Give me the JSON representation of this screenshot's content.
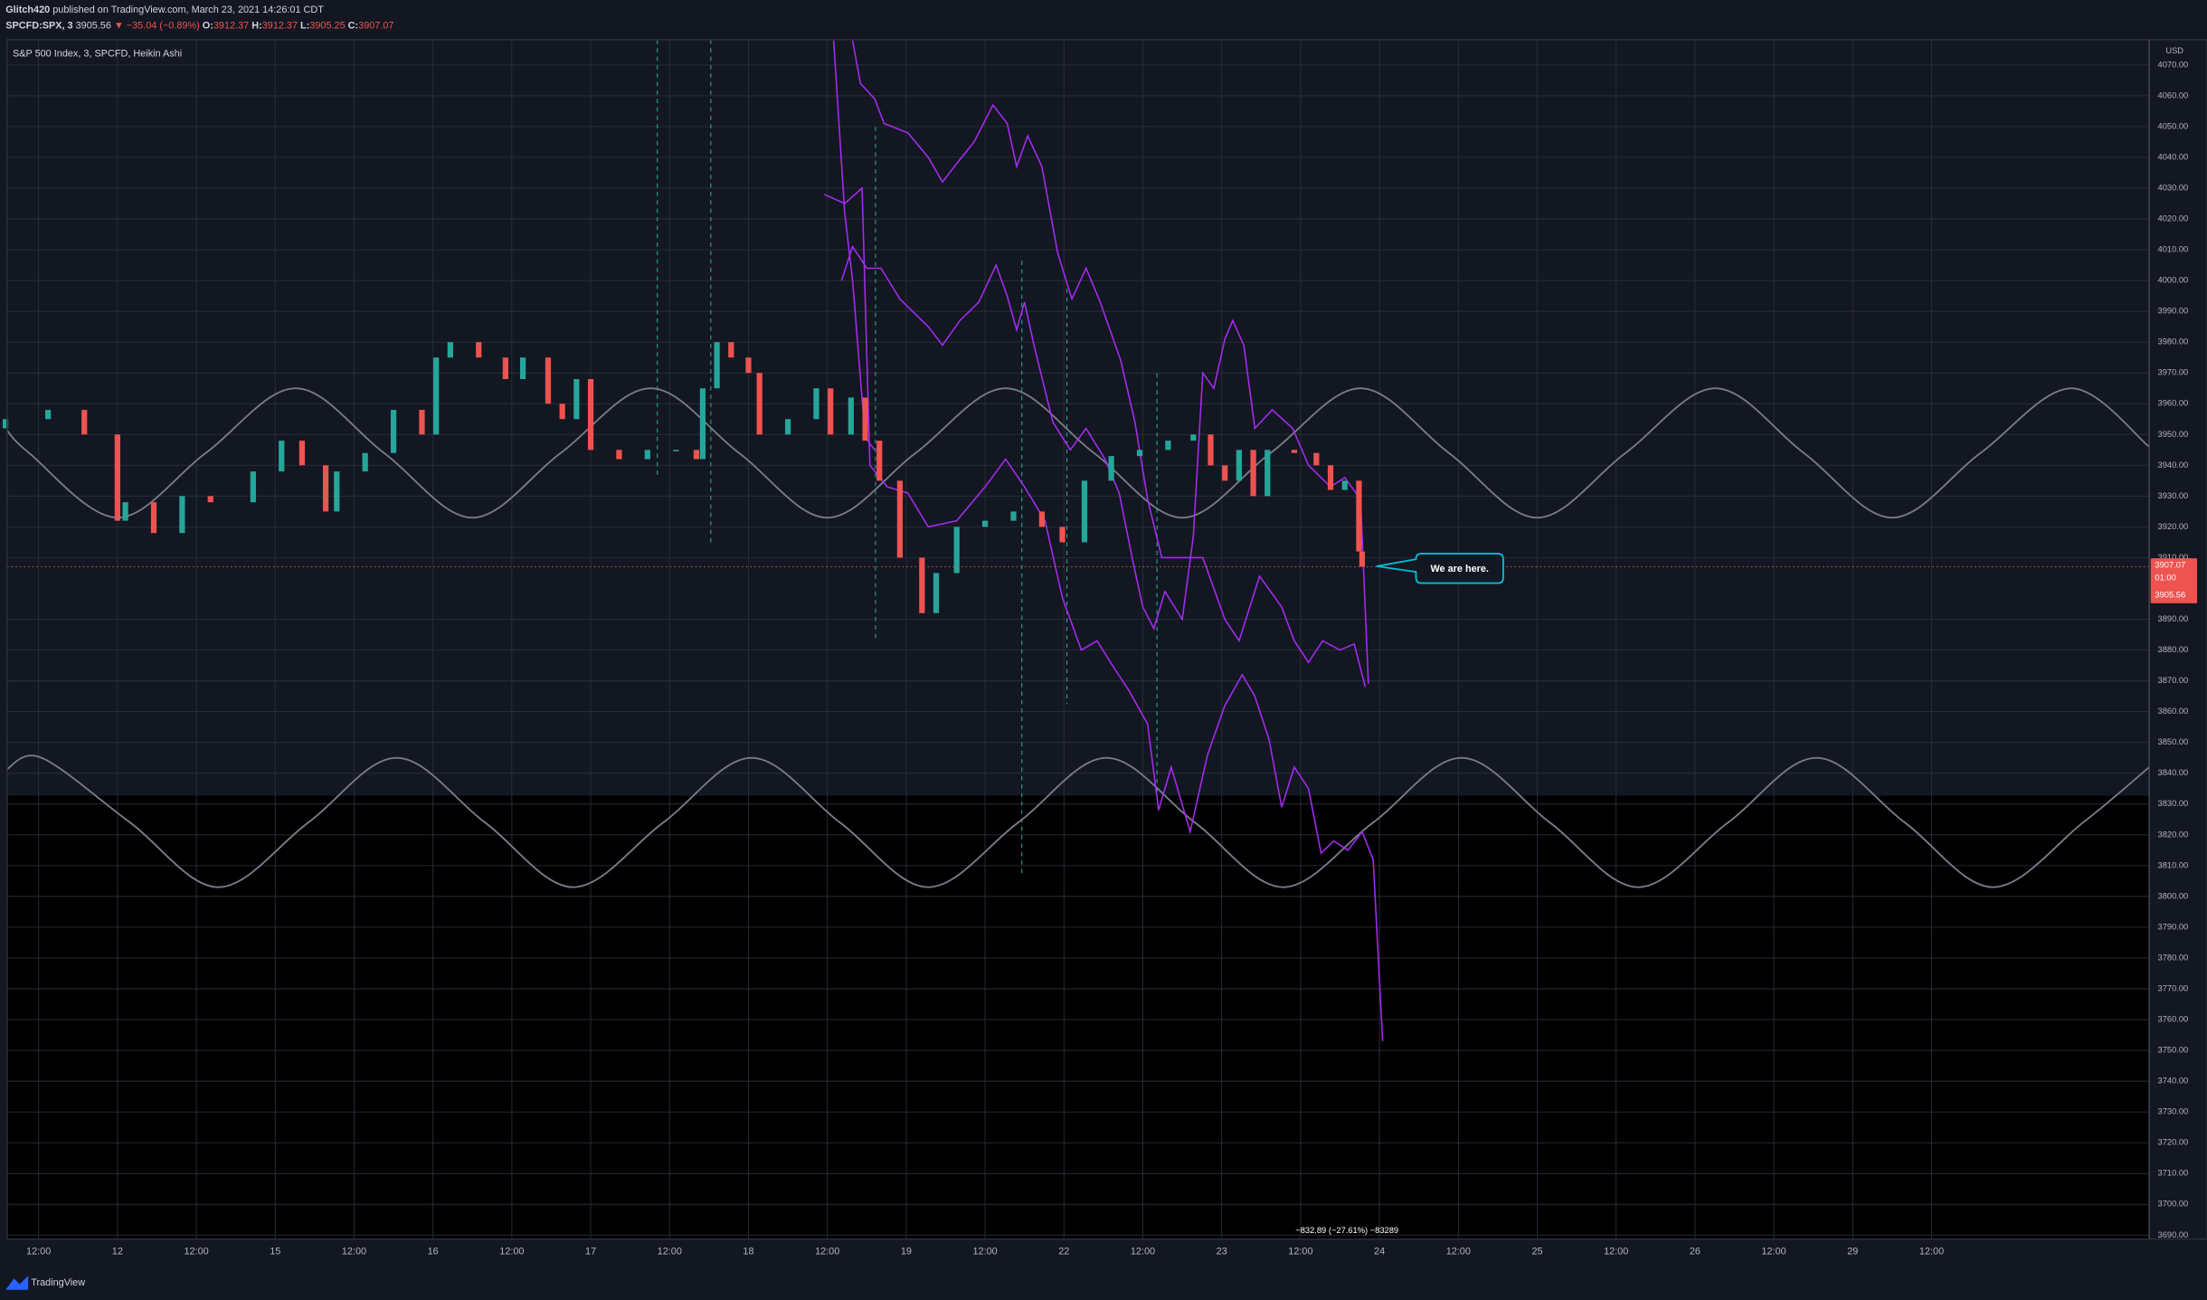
{
  "header": {
    "author": "Glitch420",
    "published": "published on TradingView.com, March 23, 2021 14:26:01 CDT",
    "symbol": "SPCFD:SPX, 3",
    "price": "3905.56",
    "change": "▼ −35.04 (−0.89%)",
    "o_label": "O:",
    "open": "3912.37",
    "h_label": "H:",
    "high": "3912.37",
    "l_label": "L:",
    "low": "3905.25",
    "c_label": "C:",
    "close": "3907.07"
  },
  "footer": {
    "brand": "TradingView"
  },
  "chart_data": {
    "type": "candlestick",
    "title": "S&P 500 Index, 3, SPCFD, Heikin Ashi",
    "y_axis_unit": "USD",
    "x": [
      0.29,
      0.56,
      0.79,
      1.0,
      1.05,
      1.23,
      1.41,
      1.59,
      1.86,
      2.04,
      2.17,
      2.32,
      2.39,
      2.57,
      2.75,
      2.93,
      3.02,
      3.11,
      3.29,
      3.46,
      3.57,
      3.73,
      3.82,
      3.91,
      4.0,
      4.18,
      4.36,
      4.54,
      4.67,
      4.71,
      4.8,
      4.89,
      5.0,
      5.07,
      5.25,
      5.43,
      5.52,
      5.65,
      5.74,
      5.83,
      5.96,
      6.1,
      6.19,
      6.32,
      6.5,
      6.68,
      6.86,
      6.99,
      7.13,
      7.3,
      7.48,
      7.66,
      7.82,
      7.93,
      8.02,
      8.11,
      8.2,
      8.29,
      8.46,
      8.6,
      8.69,
      8.78,
      8.87,
      8.89
    ],
    "open": [
      3952,
      3955,
      3958,
      3950,
      3922,
      3928,
      3918,
      3930,
      3928,
      3938,
      3948,
      3940,
      3925,
      3938,
      3944,
      3958,
      3950,
      3975,
      3980,
      3975,
      3968,
      3975,
      3960,
      3955,
      3968,
      3945,
      3942,
      3945,
      3945,
      3942,
      3965,
      3980,
      3975,
      3970,
      3950,
      3955,
      3965,
      3950,
      3962,
      3948,
      3935,
      3910,
      3892,
      3905,
      3920,
      3922,
      3925,
      3920,
      3915,
      3935,
      3943,
      3945,
      3948,
      3950,
      3940,
      3935,
      3945,
      3930,
      3945,
      3944,
      3940,
      3932,
      3935,
      3912
    ],
    "close": [
      3955,
      3958,
      3950,
      3922,
      3928,
      3918,
      3930,
      3928,
      3938,
      3948,
      3940,
      3925,
      3938,
      3944,
      3958,
      3950,
      3975,
      3980,
      3975,
      3968,
      3975,
      3960,
      3955,
      3968,
      3945,
      3942,
      3945,
      3945,
      3942,
      3965,
      3980,
      3975,
      3970,
      3950,
      3955,
      3965,
      3950,
      3962,
      3948,
      3935,
      3910,
      3892,
      3905,
      3920,
      3922,
      3925,
      3920,
      3915,
      3935,
      3943,
      3945,
      3948,
      3950,
      3940,
      3935,
      3945,
      3930,
      3945,
      3944,
      3940,
      3932,
      3935,
      3912,
      3907.07
    ],
    "up_color": "#26a69a",
    "down_color": "#ef5350",
    "series": [
      {
        "color": "#787b86",
        "smooth": true,
        "x": [
          0.29,
          0.44,
          1.0,
          1.56,
          2.13,
          2.69,
          3.25,
          3.81,
          4.38,
          4.94,
          5.5,
          6.06,
          6.63,
          7.19,
          7.75,
          8.31,
          8.88,
          9.44,
          10.0,
          10.56,
          11.13,
          11.69,
          12.25,
          12.81,
          13.38,
          13.88
        ],
        "values": [
          3952,
          3944,
          3923,
          3944,
          3965,
          3944,
          3923,
          3944,
          3965,
          3944,
          3923,
          3944,
          3965,
          3944,
          3923,
          3944,
          3965,
          3944,
          3923,
          3944,
          3965,
          3944,
          3923,
          3944,
          3965,
          3946
        ]
      },
      {
        "color": "#787b86",
        "smooth": true,
        "x": [
          0.29,
          0.52,
          1.08,
          1.64,
          2.21,
          2.77,
          3.33,
          3.89,
          4.46,
          5.02,
          5.58,
          6.14,
          6.71,
          7.27,
          7.83,
          8.39,
          8.96,
          9.52,
          10.08,
          10.64,
          11.21,
          11.77,
          12.33,
          12.89,
          13.46,
          13.88
        ],
        "values": [
          3841,
          3845,
          3824,
          3803,
          3824,
          3845,
          3824,
          3803,
          3824,
          3845,
          3824,
          3803,
          3824,
          3845,
          3824,
          3803,
          3824,
          3845,
          3824,
          3803,
          3824,
          3845,
          3824,
          3803,
          3824,
          3842
        ]
      },
      {
        "color": "#a42cf0",
        "x": [
          5.66,
          5.71,
          5.8,
          5.86,
          6.01,
          6.14,
          6.23,
          6.32,
          6.43,
          6.55,
          6.64,
          6.7,
          6.77,
          6.86,
          6.96,
          7.05,
          7.14,
          7.23,
          7.36,
          7.45,
          7.53,
          7.62,
          7.75,
          7.88,
          8.02,
          8.11,
          8.24,
          8.38,
          8.46,
          8.55,
          8.64,
          8.75,
          8.84,
          8.91
        ],
        "values": [
          4078,
          4064,
          4059,
          4051,
          4048,
          4040,
          4032,
          4038,
          4045,
          4057,
          4051,
          4037,
          4047,
          4037,
          4009,
          3994,
          4004,
          3993,
          3974,
          3954,
          3929,
          3910,
          3910,
          3910,
          3890,
          3883,
          3904,
          3894,
          3883,
          3876,
          3883,
          3880,
          3882,
          3868
        ]
      },
      {
        "color": "#a42cf0",
        "x": [
          5.48,
          5.61,
          5.72,
          5.77,
          5.88,
          6.01,
          6.14,
          6.32,
          6.5,
          6.63,
          6.75,
          6.88,
          6.99,
          7.11,
          7.21,
          7.32,
          7.41,
          7.53,
          7.6,
          7.68,
          7.8,
          7.91,
          8.02,
          8.13,
          8.21,
          8.3,
          8.38,
          8.46,
          8.55,
          8.63,
          8.71,
          8.8,
          8.89,
          8.96,
          9.02
        ],
        "values": [
          4028,
          4025,
          4030,
          3940,
          3933,
          3931,
          3920,
          3922,
          3933,
          3942,
          3933,
          3922,
          3897,
          3880,
          3883,
          3874,
          3867,
          3856,
          3828,
          3842,
          3821,
          3846,
          3862,
          3872,
          3865,
          3851,
          3829,
          3842,
          3835,
          3814,
          3818,
          3815,
          3821,
          3812,
          3753
        ]
      },
      {
        "color": "#a42cf0",
        "x": [
          5.59,
          5.66,
          5.75,
          5.84,
          5.96,
          6.14,
          6.23,
          6.34,
          6.46,
          6.57,
          6.64,
          6.7,
          6.75,
          6.81,
          6.93,
          7.04,
          7.14,
          7.26,
          7.35,
          7.44,
          7.5,
          7.57,
          7.64,
          7.75,
          7.82,
          7.88,
          7.95,
          8.02,
          8.07,
          8.14,
          8.21,
          8.32,
          8.45,
          8.55,
          8.69,
          8.78,
          8.88,
          8.93
        ],
        "values": [
          4000,
          4011,
          4004,
          4004,
          3994,
          3985,
          3979,
          3987,
          3993,
          4005,
          3995,
          3984,
          3993,
          3979,
          3954,
          3945,
          3952,
          3942,
          3931,
          3908,
          3894,
          3887,
          3899,
          3890,
          3917,
          3970,
          3965,
          3981,
          3987,
          3979,
          3952,
          3958,
          3952,
          3940,
          3933,
          3936,
          3929,
          3869
        ]
      },
      {
        "color": "#a42cf0",
        "x": [
          5.54,
          5.61,
          5.66,
          5.74,
          5.8
        ],
        "values": [
          4078,
          4022,
          4000,
          3949,
          3945
        ]
      }
    ],
    "xlim": [
      0.3,
      13.88
    ],
    "ylim": [
      3688.7,
      4078.2
    ],
    "xticks": [
      {
        "value": 0.5,
        "label": "12:00"
      },
      {
        "value": 1,
        "label": "12"
      },
      {
        "value": 1.5,
        "label": "12:00"
      },
      {
        "value": 2,
        "label": "15"
      },
      {
        "value": 2.5,
        "label": "12:00"
      },
      {
        "value": 3,
        "label": "16"
      },
      {
        "value": 3.5,
        "label": "12:00"
      },
      {
        "value": 4,
        "label": "17"
      },
      {
        "value": 4.5,
        "label": "12:00"
      },
      {
        "value": 5,
        "label": "18"
      },
      {
        "value": 5.5,
        "label": "12:00"
      },
      {
        "value": 6,
        "label": "19"
      },
      {
        "value": 6.5,
        "label": "12:00"
      },
      {
        "value": 7,
        "label": "22"
      },
      {
        "value": 7.5,
        "label": "12:00"
      },
      {
        "value": 8,
        "label": "23"
      },
      {
        "value": 8.5,
        "label": "12:00"
      },
      {
        "value": 9,
        "label": "24"
      },
      {
        "value": 9.5,
        "label": "12:00"
      },
      {
        "value": 10,
        "label": "25"
      },
      {
        "value": 10.5,
        "label": "12:00"
      },
      {
        "value": 11,
        "label": "26"
      },
      {
        "value": 11.5,
        "label": "12:00"
      },
      {
        "value": 12,
        "label": "29"
      },
      {
        "value": 12.5,
        "label": "12:00"
      }
    ],
    "yticks": [
      {
        "value": 3690,
        "label": "3690.00"
      },
      {
        "value": 3700,
        "label": "3700.00"
      },
      {
        "value": 3710,
        "label": "3710.00"
      },
      {
        "value": 3720,
        "label": "3720.00"
      },
      {
        "value": 3730,
        "label": "3730.00"
      },
      {
        "value": 3740,
        "label": "3740.00"
      },
      {
        "value": 3750,
        "label": "3750.00"
      },
      {
        "value": 3760,
        "label": "3760.00"
      },
      {
        "value": 3770,
        "label": "3770.00"
      },
      {
        "value": 3780,
        "label": "3780.00"
      },
      {
        "value": 3790,
        "label": "3790.00"
      },
      {
        "value": 3800,
        "label": "3800.00"
      },
      {
        "value": 3810,
        "label": "3810.00"
      },
      {
        "value": 3820,
        "label": "3820.00"
      },
      {
        "value": 3830,
        "label": "3830.00"
      },
      {
        "value": 3840,
        "label": "3840.00"
      },
      {
        "value": 3850,
        "label": "3850.00"
      },
      {
        "value": 3860,
        "label": "3860.00"
      },
      {
        "value": 3870,
        "label": "3870.00"
      },
      {
        "value": 3880,
        "label": "3880.00"
      },
      {
        "value": 3890,
        "label": "3890.00"
      },
      {
        "value": 3910,
        "label": "3910.00"
      },
      {
        "value": 3920,
        "label": "3920.00"
      },
      {
        "value": 3930,
        "label": "3930.00"
      },
      {
        "value": 3940,
        "label": "3940.00"
      },
      {
        "value": 3950,
        "label": "3950.00"
      },
      {
        "value": 3960,
        "label": "3960.00"
      },
      {
        "value": 3970,
        "label": "3970.00"
      },
      {
        "value": 3980,
        "label": "3980.00"
      },
      {
        "value": 3990,
        "label": "3990.00"
      },
      {
        "value": 4000,
        "label": "4000.00"
      },
      {
        "value": 4010,
        "label": "4010.00"
      },
      {
        "value": 4020,
        "label": "4020.00"
      },
      {
        "value": 4030,
        "label": "4030.00"
      },
      {
        "value": 4040,
        "label": "4040.00"
      },
      {
        "value": 4050,
        "label": "4050.00"
      },
      {
        "value": 4060,
        "label": "4060.00"
      },
      {
        "value": 4070,
        "label": "4070.00"
      }
    ],
    "grid": true,
    "last_close": 3907.07,
    "countdown": "01:00",
    "last_price": 3905.56,
    "annotation": "We are here.",
    "measure": "−832.89 (−27.61%) −83289"
  }
}
